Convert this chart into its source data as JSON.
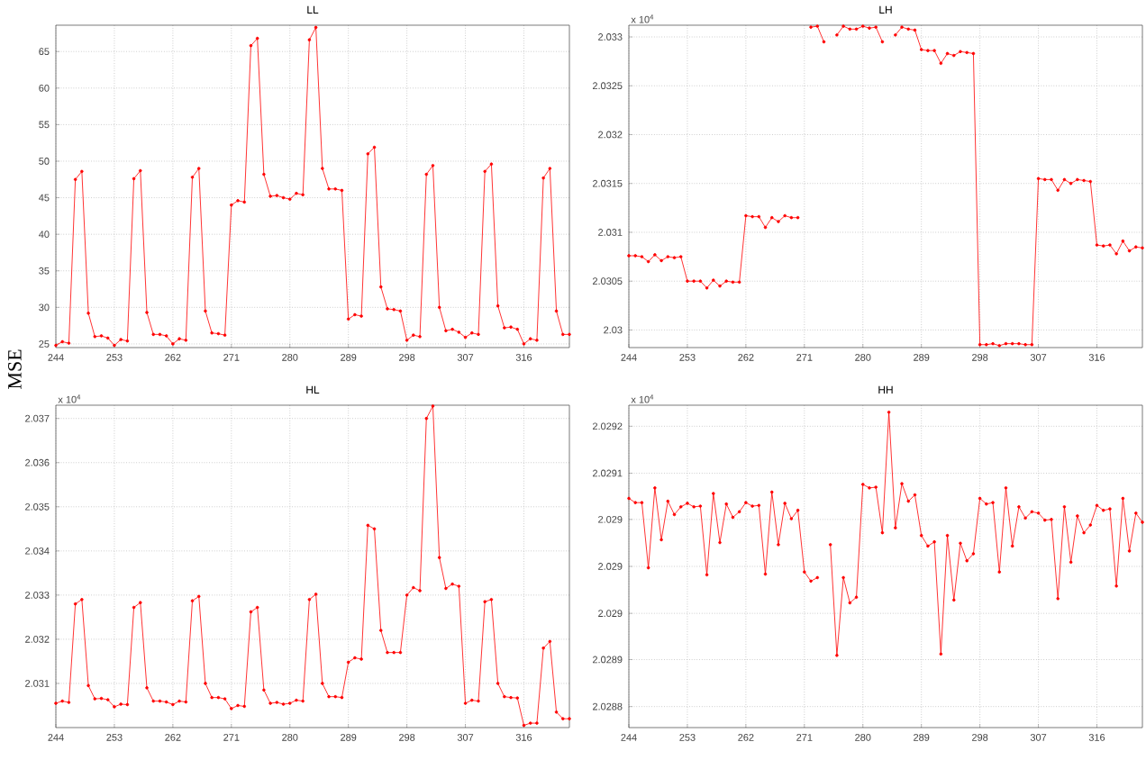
{
  "chart_data": [
    {
      "type": "line",
      "title": "LL",
      "ylabel": "MSE",
      "grid": true,
      "marker": "circle",
      "x": [
        244,
        245,
        246,
        247,
        248,
        249,
        250,
        251,
        252,
        253,
        254,
        255,
        256,
        257,
        258,
        259,
        260,
        261,
        262,
        263,
        264,
        265,
        266,
        267,
        268,
        269,
        270,
        271,
        272,
        273,
        274,
        275,
        276,
        277,
        278,
        279,
        280,
        281,
        282,
        283,
        284,
        285,
        286,
        287,
        288,
        289,
        290,
        291,
        292,
        293,
        294,
        295,
        296,
        297,
        298,
        299,
        300,
        301,
        302,
        303,
        304,
        305,
        306,
        307,
        308,
        309,
        310,
        311,
        312,
        313,
        314,
        315,
        316,
        317,
        318,
        319,
        320,
        321,
        322,
        323
      ],
      "xlim": [
        244,
        323
      ],
      "xticks": [
        244,
        253,
        262,
        271,
        280,
        289,
        298,
        307,
        316
      ],
      "ylim": [
        24.5,
        68.6
      ],
      "yticks": [
        25,
        30,
        35,
        40,
        45,
        50,
        55,
        60,
        65
      ],
      "series": [
        {
          "color": "#ff0000",
          "values": [
            24.8,
            25.3,
            25.1,
            47.5,
            48.6,
            29.2,
            26.0,
            26.1,
            25.8,
            24.8,
            25.6,
            25.4,
            47.6,
            48.7,
            29.3,
            26.3,
            26.3,
            26.1,
            25.0,
            25.7,
            25.5,
            47.8,
            49.0,
            29.5,
            26.5,
            26.4,
            26.2,
            44.0,
            44.6,
            44.4,
            65.8,
            66.8,
            48.2,
            45.2,
            45.3,
            45.0,
            44.8,
            45.6,
            45.4,
            66.6,
            68.3,
            49.0,
            46.2,
            46.2,
            46.0,
            28.4,
            29.0,
            28.8,
            51.0,
            51.9,
            32.8,
            29.8,
            29.7,
            29.5,
            25.5,
            26.2,
            26.0,
            48.2,
            49.4,
            30.0,
            26.8,
            27.0,
            26.6,
            25.9,
            26.5,
            26.3,
            48.6,
            49.6,
            30.2,
            27.2,
            27.3,
            27.0,
            25.0,
            25.7,
            25.5,
            47.7,
            49.0,
            29.5,
            26.3,
            26.3
          ]
        }
      ]
    },
    {
      "type": "line",
      "title": "LH",
      "grid": true,
      "marker": "circle",
      "annotations": [
        "x 10$^{4}$"
      ],
      "x": [
        244,
        245,
        246,
        247,
        248,
        249,
        250,
        251,
        252,
        253,
        254,
        255,
        256,
        257,
        258,
        259,
        260,
        261,
        262,
        263,
        264,
        265,
        266,
        267,
        268,
        269,
        270,
        271,
        272,
        273,
        274,
        275,
        276,
        277,
        278,
        279,
        280,
        281,
        282,
        283,
        284,
        285,
        286,
        287,
        288,
        289,
        290,
        291,
        292,
        293,
        294,
        295,
        296,
        297,
        298,
        299,
        300,
        301,
        302,
        303,
        304,
        305,
        306,
        307,
        308,
        309,
        310,
        311,
        312,
        313,
        314,
        315,
        316,
        317,
        318,
        319,
        320,
        321,
        322,
        323
      ],
      "xlim": [
        244,
        323
      ],
      "xticks": [
        244,
        253,
        262,
        271,
        280,
        289,
        298,
        307,
        316
      ],
      "ylim": [
        2.02982,
        2.03312
      ],
      "yticks": [
        2.03,
        2.0305,
        2.031,
        2.0315,
        2.032,
        2.0325,
        2.033
      ],
      "series": [
        {
          "color": "#ff0000",
          "values": [
            2.03076,
            2.03076,
            2.03075,
            2.0307,
            2.03077,
            2.03071,
            2.03075,
            2.03074,
            2.03075,
            2.0305,
            2.0305,
            2.0305,
            2.03043,
            2.03051,
            2.03045,
            2.0305,
            2.03049,
            2.03049,
            2.03117,
            2.03116,
            2.03116,
            2.03105,
            2.03115,
            2.03111,
            2.03117,
            2.03115,
            2.03115,
            null,
            2.0331,
            2.03311,
            2.03295,
            null,
            2.03302,
            2.03311,
            2.03308,
            2.03308,
            2.03311,
            2.03309,
            2.0331,
            2.03295,
            null,
            2.03302,
            2.0331,
            2.03308,
            2.03307,
            2.03287,
            2.03286,
            2.03286,
            2.03273,
            2.03283,
            2.03281,
            2.03285,
            2.03284,
            2.03283,
            2.02985,
            2.02985,
            2.02986,
            2.02984,
            2.02986,
            2.02986,
            2.02986,
            2.02985,
            2.02985,
            2.03155,
            2.03154,
            2.03154,
            2.03143,
            2.03154,
            2.0315,
            2.03154,
            2.03153,
            2.03152,
            2.03087,
            2.03086,
            2.03087,
            2.03078,
            2.03091,
            2.03081,
            2.03085,
            2.03084
          ]
        }
      ]
    },
    {
      "type": "line",
      "title": "HL",
      "grid": true,
      "marker": "circle",
      "annotations": [
        "x 10$^{4}$"
      ],
      "x": [
        244,
        245,
        246,
        247,
        248,
        249,
        250,
        251,
        252,
        253,
        254,
        255,
        256,
        257,
        258,
        259,
        260,
        261,
        262,
        263,
        264,
        265,
        266,
        267,
        268,
        269,
        270,
        271,
        272,
        273,
        274,
        275,
        276,
        277,
        278,
        279,
        280,
        281,
        282,
        283,
        284,
        285,
        286,
        287,
        288,
        289,
        290,
        291,
        292,
        293,
        294,
        295,
        296,
        297,
        298,
        299,
        300,
        301,
        302,
        303,
        304,
        305,
        306,
        307,
        308,
        309,
        310,
        311,
        312,
        313,
        314,
        315,
        316,
        317,
        318,
        319,
        320,
        321,
        322,
        323
      ],
      "xlim": [
        244,
        323
      ],
      "xticks": [
        244,
        253,
        262,
        271,
        280,
        289,
        298,
        307,
        316
      ],
      "ylim": [
        2.03,
        2.0373
      ],
      "yticks": [
        2.031,
        2.032,
        2.033,
        2.034,
        2.035,
        2.036,
        2.037
      ],
      "series": [
        {
          "color": "#ff0000",
          "values": [
            2.03055,
            2.0306,
            2.03057,
            2.0328,
            2.0329,
            2.03095,
            2.03065,
            2.03066,
            2.03063,
            2.03047,
            2.03053,
            2.03052,
            2.03272,
            2.03283,
            2.0309,
            2.0306,
            2.0306,
            2.03058,
            2.03052,
            2.0306,
            2.03058,
            2.03287,
            2.03297,
            2.031,
            2.03068,
            2.03068,
            2.03065,
            2.03043,
            2.0305,
            2.03048,
            2.03262,
            2.03272,
            2.03085,
            2.03055,
            2.03057,
            2.03053,
            2.03055,
            2.03062,
            2.0306,
            2.0329,
            2.03302,
            2.031,
            2.0307,
            2.0307,
            2.03068,
            2.03148,
            2.03158,
            2.03155,
            2.03458,
            2.0345,
            2.0322,
            2.0317,
            2.0317,
            2.0317,
            2.033,
            2.03317,
            2.0331,
            2.037,
            2.03728,
            2.03385,
            2.03315,
            2.03325,
            2.0332,
            2.03055,
            2.03062,
            2.0306,
            2.03285,
            2.0329,
            2.031,
            2.0307,
            2.03068,
            2.03067,
            2.03005,
            2.0301,
            2.0301,
            2.0318,
            2.03195,
            2.03035,
            2.0302,
            2.0302
          ]
        }
      ]
    },
    {
      "type": "line",
      "title": "HH",
      "grid": true,
      "marker": "circle",
      "annotations": [
        "x 10$^{4}$"
      ],
      "x": [
        244,
        245,
        246,
        247,
        248,
        249,
        250,
        251,
        252,
        253,
        254,
        255,
        256,
        257,
        258,
        259,
        260,
        261,
        262,
        263,
        264,
        265,
        266,
        267,
        268,
        269,
        270,
        271,
        272,
        273,
        274,
        275,
        276,
        277,
        278,
        279,
        280,
        281,
        282,
        283,
        284,
        285,
        286,
        287,
        288,
        289,
        290,
        291,
        292,
        293,
        294,
        295,
        296,
        297,
        298,
        299,
        300,
        301,
        302,
        303,
        304,
        305,
        306,
        307,
        308,
        309,
        310,
        311,
        312,
        313,
        314,
        315,
        316,
        317,
        318,
        319,
        320,
        321,
        322,
        323
      ],
      "xlim": [
        244,
        323
      ],
      "xticks": [
        244,
        253,
        262,
        271,
        280,
        289,
        298,
        307,
        316
      ],
      "ylim": [
        2.02877,
        2.02923
      ],
      "yticks": [
        {
          "value": 2.0292,
          "label": "2.0292"
        },
        {
          "value": 2.029133,
          "label": "2.0291"
        },
        {
          "value": 2.029067,
          "label": "2.029"
        },
        {
          "value": 2.029,
          "label": "2.029"
        },
        {
          "value": 2.028933,
          "label": "2.029"
        },
        {
          "value": 2.028867,
          "label": "2.0289"
        },
        {
          "value": 2.0288,
          "label": "2.0288"
        }
      ],
      "series": [
        {
          "color": "#ff0000",
          "values": [
            2.029097,
            2.029091,
            2.029091,
            2.028998,
            2.029112,
            2.029038,
            2.029093,
            2.029074,
            2.029085,
            2.02909,
            2.029085,
            2.029086,
            2.028988,
            2.029104,
            2.029034,
            2.029089,
            2.02907,
            2.029078,
            2.029091,
            2.029086,
            2.029087,
            2.028989,
            2.029106,
            2.029031,
            2.02909,
            2.029068,
            2.02908,
            2.028992,
            2.028979,
            2.028984,
            null,
            2.029031,
            2.028873,
            2.028984,
            2.028948,
            2.028956,
            2.029117,
            2.029112,
            2.029113,
            2.029048,
            2.02922,
            2.029055,
            2.029118,
            2.029093,
            2.029102,
            2.029044,
            2.029029,
            2.029035,
            2.028875,
            2.029044,
            2.028952,
            2.029033,
            2.029008,
            2.029018,
            2.029097,
            2.029089,
            2.029091,
            2.028992,
            2.029112,
            2.029029,
            2.029085,
            2.029069,
            2.029078,
            2.029076,
            2.029066,
            2.029067,
            2.028954,
            2.029085,
            2.029006,
            2.029072,
            2.029048,
            2.029059,
            2.029087,
            2.02908,
            2.029082,
            2.028972,
            2.029097,
            2.029022,
            2.029076,
            2.029063
          ]
        }
      ]
    }
  ]
}
